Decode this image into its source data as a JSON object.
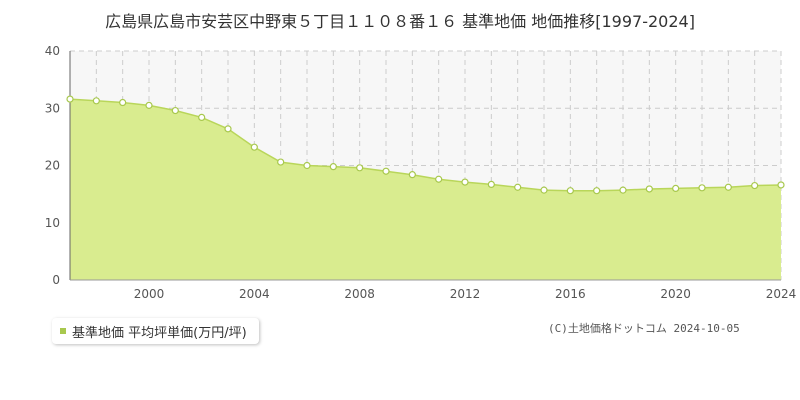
{
  "chart_data": {
    "type": "area",
    "title": "広島県広島市安芸区中野東５丁目１１０８番１６ 基準地価 地価推移[1997-2024]",
    "x": [
      1997,
      1998,
      1999,
      2000,
      2001,
      2002,
      2003,
      2004,
      2005,
      2006,
      2007,
      2008,
      2009,
      2010,
      2011,
      2012,
      2013,
      2014,
      2015,
      2016,
      2017,
      2018,
      2019,
      2020,
      2021,
      2022,
      2023,
      2024
    ],
    "series": [
      {
        "name": "基準地価 平均坪単価(万円/坪)",
        "values": [
          31.6,
          31.3,
          31.0,
          30.5,
          29.6,
          28.4,
          26.4,
          23.2,
          20.6,
          20.0,
          19.8,
          19.6,
          19.0,
          18.4,
          17.6,
          17.1,
          16.7,
          16.2,
          15.7,
          15.6,
          15.6,
          15.7,
          15.9,
          16.0,
          16.1,
          16.2,
          16.5,
          16.6
        ]
      }
    ],
    "xlim": [
      1997,
      2024
    ],
    "ylim": [
      0,
      40
    ],
    "x_ticks": [
      "2000",
      "2004",
      "2008",
      "2012",
      "2016",
      "2020",
      "2024"
    ],
    "y_ticks": [
      "0",
      "10",
      "20",
      "30",
      "40"
    ],
    "grid": true,
    "legend_position": "bottom-left",
    "colors": {
      "fill": "#d9ec8f",
      "line": "#b9d65a",
      "marker_fill": "#ffffff",
      "marker_stroke": "#a8c84e",
      "legend_swatch": "#a8c84e",
      "grid": "#cccccc",
      "plot_bg": "#f7f7f7"
    }
  },
  "footer": {
    "copyright": "(C)土地価格ドットコム 2024-10-05"
  }
}
